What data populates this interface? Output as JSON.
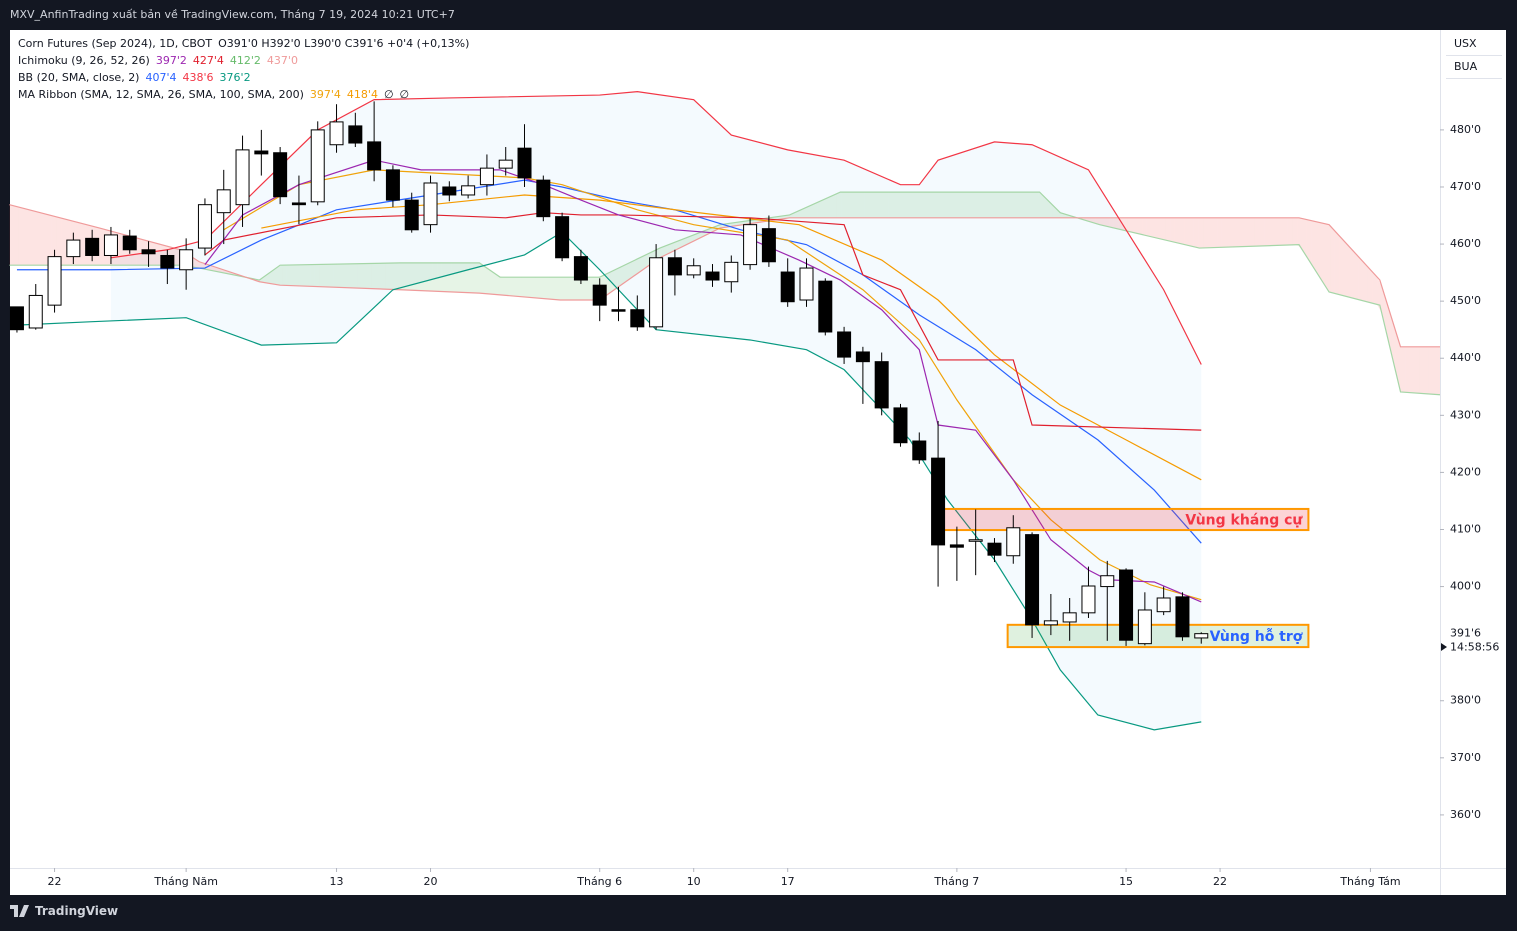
{
  "header": {
    "publisher": "MXV_AnfinTrading xuất bản về TradingView.com, Tháng 7 19, 2024 10:21 UTC+7"
  },
  "legend": {
    "symbol": "Corn Futures (Sep 2024), 1D, CBOT",
    "ohlc": "O391'0  H392'0  L390'0  C391'6  +0'4 (+0,13%)",
    "indicators": [
      {
        "name": "Ichimoku (9, 26, 52, 26)",
        "values": [
          {
            "text": "397'2",
            "color": "#9c27b0"
          },
          {
            "text": "427'4",
            "color": "#e0202e"
          },
          {
            "text": "412'2",
            "color": "#66bb6a"
          },
          {
            "text": "437'0",
            "color": "#ef9a9a"
          }
        ]
      },
      {
        "name": "BB (20, SMA, close, 2)",
        "values": [
          {
            "text": "407'4",
            "color": "#2962ff"
          },
          {
            "text": "438'6",
            "color": "#f23645"
          },
          {
            "text": "376'2",
            "color": "#089981"
          }
        ]
      },
      {
        "name": "MA Ribbon (SMA, 12, SMA, 26, SMA, 100, SMA, 200)",
        "values": [
          {
            "text": "397'4",
            "color": "#f0a30a"
          },
          {
            "text": "418'4",
            "color": "#f59b00"
          },
          {
            "text": "∅",
            "color": "#131722"
          },
          {
            "text": "∅",
            "color": "#131722"
          }
        ]
      }
    ]
  },
  "scale_buttons": [
    "USX",
    "BUA"
  ],
  "countdown": "14:58:56",
  "footer": {
    "brand": "TradingView"
  },
  "chart_data": {
    "type": "candlestick",
    "open": [
      449,
      445.3,
      449.3,
      457.8,
      461,
      458,
      461.4,
      459,
      458,
      455.5,
      459.3,
      465.5,
      466.9,
      476.3,
      476,
      467.2,
      467.4,
      477.4,
      480.7,
      477.9,
      473,
      467.7,
      463.4,
      470,
      468.6,
      470.4,
      473.3,
      476.8,
      471.2,
      464.8,
      457.8,
      452.8,
      448.5,
      448.5,
      445.5,
      457.6,
      454.6,
      455.1,
      453.4,
      456.4,
      462.7,
      455.1,
      450.2,
      453.5,
      444.6,
      441.1,
      439.4,
      431.3,
      425.5,
      422.5,
      407.3,
      408,
      407.6,
      405.4,
      409.1,
      393.3,
      393.8,
      395.4,
      400,
      402.9,
      390,
      395.6,
      398.2,
      391
    ],
    "high": [
      449,
      453,
      459,
      462,
      462.5,
      463,
      462.5,
      460.5,
      459,
      461,
      468,
      473,
      479,
      480,
      477,
      472,
      481.5,
      484.5,
      483,
      485,
      473.8,
      469,
      472,
      471,
      472,
      475.7,
      477,
      481,
      472,
      465.5,
      459,
      454,
      452.5,
      451,
      460,
      459,
      457.5,
      456.5,
      458,
      464.5,
      465,
      457.5,
      457.5,
      454,
      445.5,
      442,
      441,
      432,
      427,
      429,
      410.5,
      413.5,
      408.5,
      412.5,
      409.5,
      398.7,
      398,
      403.5,
      404.5,
      403.2,
      399,
      400,
      399,
      392
    ],
    "low": [
      444.5,
      445,
      448,
      456.5,
      457,
      456.5,
      458.3,
      456,
      453,
      452,
      458,
      460,
      463,
      472,
      467,
      463.5,
      466.8,
      476,
      477,
      471,
      466.5,
      462,
      462,
      467.5,
      468,
      468.5,
      472,
      470,
      464,
      457,
      453,
      446.5,
      446.5,
      444.8,
      445,
      451,
      454,
      452.5,
      451.5,
      455.5,
      456,
      449,
      449,
      444,
      439,
      432,
      430,
      424.5,
      421.5,
      400,
      401,
      402,
      404.3,
      404,
      391,
      391.5,
      390.5,
      394.5,
      390.5,
      389.6,
      389.7,
      395,
      390.5,
      390
    ],
    "close": [
      445,
      451,
      457.8,
      460.7,
      458,
      461.6,
      459,
      458.3,
      455.8,
      459,
      466.9,
      469.5,
      476.5,
      475.8,
      468.3,
      466.9,
      480,
      481.4,
      477.7,
      473,
      467.7,
      462.5,
      470.7,
      468.6,
      470.2,
      473.3,
      474.7,
      471.6,
      464.8,
      457.6,
      453.7,
      449.3,
      448.3,
      445.5,
      457.6,
      454.6,
      456.2,
      453.7,
      456.8,
      463.4,
      456.9,
      449.9,
      455.8,
      444.6,
      440.2,
      439.4,
      431.3,
      425.2,
      422.2,
      407.3,
      406.9,
      408.2,
      405.5,
      410.3,
      393.3,
      394,
      395.4,
      400.1,
      401.9,
      390.6,
      395.9,
      398,
      391.2,
      391.75
    ],
    "up_color": "#ffffff",
    "down_color": "#000000",
    "wick_color": "#000000",
    "ichimoku": {
      "cloud_up": "rgba(76,175,80,0.14)",
      "cloud_down": "rgba(244,67,54,0.14)",
      "span_a": {
        "color": "#a5d6a7",
        "x": [
          -0.4,
          4.4,
          8.7,
          9.7,
          12.9,
          14,
          20.4,
          24.6,
          25.7,
          28.9,
          31,
          34.2,
          37.4,
          41.1,
          43.8,
          54.4,
          55.5,
          57.6,
          62.9,
          68.2,
          69.8,
          72.5,
          73.6,
          75.7
        ],
        "values": [
          456.3,
          456.3,
          456.3,
          455.8,
          453.7,
          456.3,
          456.7,
          456.7,
          454.2,
          454.2,
          454.2,
          459.3,
          463.4,
          465.1,
          469.1,
          469.1,
          465.5,
          463.4,
          459.3,
          459.9,
          451.6,
          449.3,
          434.1,
          433.6
        ]
      },
      "span_b": {
        "color": "#ef9a9a",
        "x": [
          -0.4,
          4.4,
          8.7,
          9.7,
          12.9,
          14,
          20.4,
          24.6,
          25.7,
          28.9,
          31,
          34.2,
          37.4,
          41.1,
          43.8,
          54.4,
          55.5,
          57.6,
          62.9,
          68.2,
          69.8,
          72.5,
          73.6,
          75.7
        ],
        "values": [
          466.9,
          462.8,
          459,
          456.9,
          453.4,
          452.8,
          452,
          451.4,
          451.1,
          450.2,
          450.2,
          457.6,
          462.8,
          464.6,
          464.6,
          464.6,
          464.6,
          464.6,
          464.6,
          464.6,
          463.4,
          453.7,
          442,
          442
        ]
      },
      "tenkan": {
        "color": "#9c27b0",
        "x": [
          10,
          12,
          15,
          19,
          21.5,
          25.7,
          28,
          30,
          32,
          35,
          38.5,
          41.6,
          43.8,
          46,
          48,
          49,
          51,
          53,
          55,
          57,
          58,
          60.5,
          63
        ],
        "values": [
          456.4,
          465.1,
          470.4,
          474.7,
          473,
          473,
          470.4,
          467.7,
          465.1,
          462.5,
          461.6,
          457.2,
          453.7,
          448.5,
          441.5,
          428.3,
          427.4,
          418.7,
          408.2,
          402.9,
          401.2,
          400.8,
          397.3
        ]
      },
      "kijun": {
        "color": "#e0202e",
        "x": [
          10,
          11,
          17,
          22,
          26,
          28,
          30,
          32,
          39,
          44,
          45,
          47,
          49,
          53,
          54,
          63
        ],
        "values": [
          458.1,
          460.7,
          464.6,
          465.1,
          464.6,
          465.5,
          465.1,
          465.1,
          464.6,
          463.4,
          454.6,
          452,
          439.7,
          439.7,
          428.3,
          427.4
        ]
      }
    },
    "bollinger": {
      "fill": "rgba(33,150,243,0.05)",
      "upper": {
        "color": "#f23645",
        "x": [
          5,
          8,
          10,
          13,
          16,
          19,
          23,
          31,
          33,
          36,
          38,
          41,
          44,
          47,
          48,
          49,
          52,
          54,
          57,
          59,
          61,
          63
        ],
        "values": [
          457.6,
          459,
          460.7,
          470.4,
          480,
          485.3,
          485.6,
          486.1,
          486.7,
          485.3,
          479.1,
          476.5,
          474.7,
          470.4,
          470.4,
          474.7,
          477.9,
          477.4,
          473,
          462.5,
          452,
          438.9
        ]
      },
      "basis": {
        "color": "#2962ff",
        "x": [
          0,
          5,
          10,
          13,
          17,
          22,
          27,
          29,
          32,
          35,
          38.5,
          42,
          45,
          48,
          51,
          54,
          57.5,
          60.5,
          63
        ],
        "values": [
          455.5,
          455.5,
          455.8,
          460.7,
          466,
          468.6,
          471.2,
          470,
          467.7,
          466,
          462.5,
          459.9,
          454.6,
          447.6,
          441.5,
          433.6,
          425.7,
          416.9,
          407.6
        ]
      },
      "lower": {
        "color": "#089981",
        "x": [
          0,
          4,
          9,
          13,
          17,
          20,
          24,
          27,
          29,
          31,
          34,
          39,
          42,
          44,
          46,
          47.5,
          49.5,
          52,
          54,
          55.5,
          57.5,
          60.5,
          63
        ],
        "values": [
          445.8,
          446.4,
          447.1,
          442.3,
          442.7,
          452,
          455.5,
          458.1,
          462.1,
          455.5,
          445,
          443.2,
          441.5,
          438,
          431,
          425.7,
          415.2,
          404.7,
          394.2,
          385.4,
          377.5,
          374.9,
          376.3
        ]
      }
    },
    "ma_ribbon": [
      {
        "color": "#f0a30a",
        "x": [
          11,
          15,
          19,
          27,
          29,
          33,
          36,
          41,
          45,
          48,
          50,
          53,
          55,
          57.6,
          60.3,
          63
        ],
        "values": [
          462.5,
          470.4,
          473,
          471.6,
          470.4,
          466,
          463.4,
          460.7,
          452,
          443.2,
          432.7,
          418.7,
          411.7,
          404.7,
          400.3,
          397.7
        ]
      },
      {
        "color": "#f59b00",
        "x": [
          13,
          18,
          22,
          27,
          31,
          36,
          41.6,
          46,
          49,
          52,
          55.5,
          59,
          63
        ],
        "values": [
          462.8,
          466,
          466.9,
          468.6,
          467.7,
          465.6,
          463.4,
          457.2,
          450.2,
          440.6,
          431.8,
          425.7,
          418.7
        ]
      }
    ],
    "zones": [
      {
        "label": "Vùng kháng cự",
        "x": [
          49.2,
          68.7
        ],
        "y": [
          413.6,
          409.9
        ],
        "fill": "rgba(242,54,69,0.22)",
        "border": "#ff9800",
        "text_color": "#f23645"
      },
      {
        "label": "Vùng hỗ trợ",
        "x": [
          52.7,
          68.7
        ],
        "y": [
          393.3,
          389.4
        ],
        "fill": "rgba(76,175,80,0.18)",
        "border": "#ff9800",
        "text_color": "#2962ff"
      }
    ],
    "last_price": {
      "value": 391.75,
      "label": "391'6"
    },
    "xlim": [
      -0.37,
      75.7
    ],
    "ylim": [
      350.7,
      497.5
    ],
    "grid": false,
    "xticks": [
      {
        "value": 2,
        "label": "22"
      },
      {
        "value": 9,
        "label": "Tháng Năm"
      },
      {
        "value": 17,
        "label": "13"
      },
      {
        "value": 22,
        "label": "20"
      },
      {
        "value": 31,
        "label": "Tháng 6"
      },
      {
        "value": 36,
        "label": "10"
      },
      {
        "value": 41,
        "label": "17"
      },
      {
        "value": 50,
        "label": "Tháng 7"
      },
      {
        "value": 59,
        "label": "15"
      },
      {
        "value": 64,
        "label": "22"
      },
      {
        "value": 72,
        "label": "Tháng Tám"
      }
    ],
    "yticks": [
      {
        "value": 480,
        "label": "480'0"
      },
      {
        "value": 470,
        "label": "470'0"
      },
      {
        "value": 460,
        "label": "460'0"
      },
      {
        "value": 450,
        "label": "450'0"
      },
      {
        "value": 440,
        "label": "440'0"
      },
      {
        "value": 430,
        "label": "430'0"
      },
      {
        "value": 420,
        "label": "420'0"
      },
      {
        "value": 410,
        "label": "410'0"
      },
      {
        "value": 400,
        "label": "400'0"
      },
      {
        "value": 380,
        "label": "380'0"
      },
      {
        "value": 370,
        "label": "370'0"
      },
      {
        "value": 360,
        "label": "360'0"
      }
    ]
  }
}
